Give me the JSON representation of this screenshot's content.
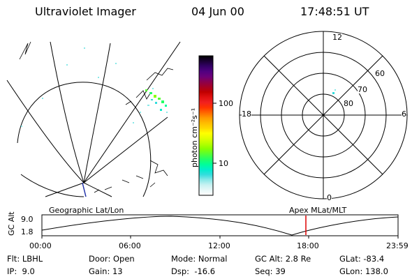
{
  "header": {
    "title": "Ultraviolet Imager",
    "date": "04 Jun 00",
    "time": "17:48:51 UT"
  },
  "colorbar": {
    "unit_label": "photon cm⁻²s⁻¹",
    "tick_labels": [
      "100",
      "10"
    ],
    "colors_top_to_bottom": [
      "#000000",
      "#1a0033",
      "#330066",
      "#500080",
      "#6b007a",
      "#8a004f",
      "#a60026",
      "#c00000",
      "#e01010",
      "#f02020",
      "#ff3300",
      "#ff6600",
      "#ff9900",
      "#ffbb00",
      "#ffd800",
      "#ffff00",
      "#e0ff00",
      "#b8ff00",
      "#88ff00",
      "#55ff33",
      "#22ff66",
      "#00ff99",
      "#00eecc",
      "#33dddd",
      "#88e8e8",
      "#c8f2f2",
      "#e8f8f8",
      "#ffffff"
    ]
  },
  "polar": {
    "labels": {
      "top": "12",
      "bottom": "0",
      "left": "18",
      "right": "6"
    },
    "lat_labels": [
      "60",
      "70",
      "80"
    ]
  },
  "orbit": {
    "ylabel": "GC Alt",
    "ymax": "9.0",
    "ymin": "1.8",
    "left_label": "Geographic Lat/Lon",
    "right_label": "Apex MLat/MLT",
    "x_ticks": [
      "00:00",
      "06:00",
      "12:00",
      "18:00",
      "23:59"
    ],
    "marker_color": "#dd0000"
  },
  "info": {
    "rows": [
      [
        "Flt: LBHL",
        "Door: Open",
        "Mode: Normal",
        "GC Alt: 2.8 Re",
        "GLat: -83.4"
      ],
      [
        "IP:  9.0",
        "Gain: 13",
        "Dsp:  -16.6",
        "Seq: 39",
        "GLon: 138.0"
      ]
    ]
  }
}
